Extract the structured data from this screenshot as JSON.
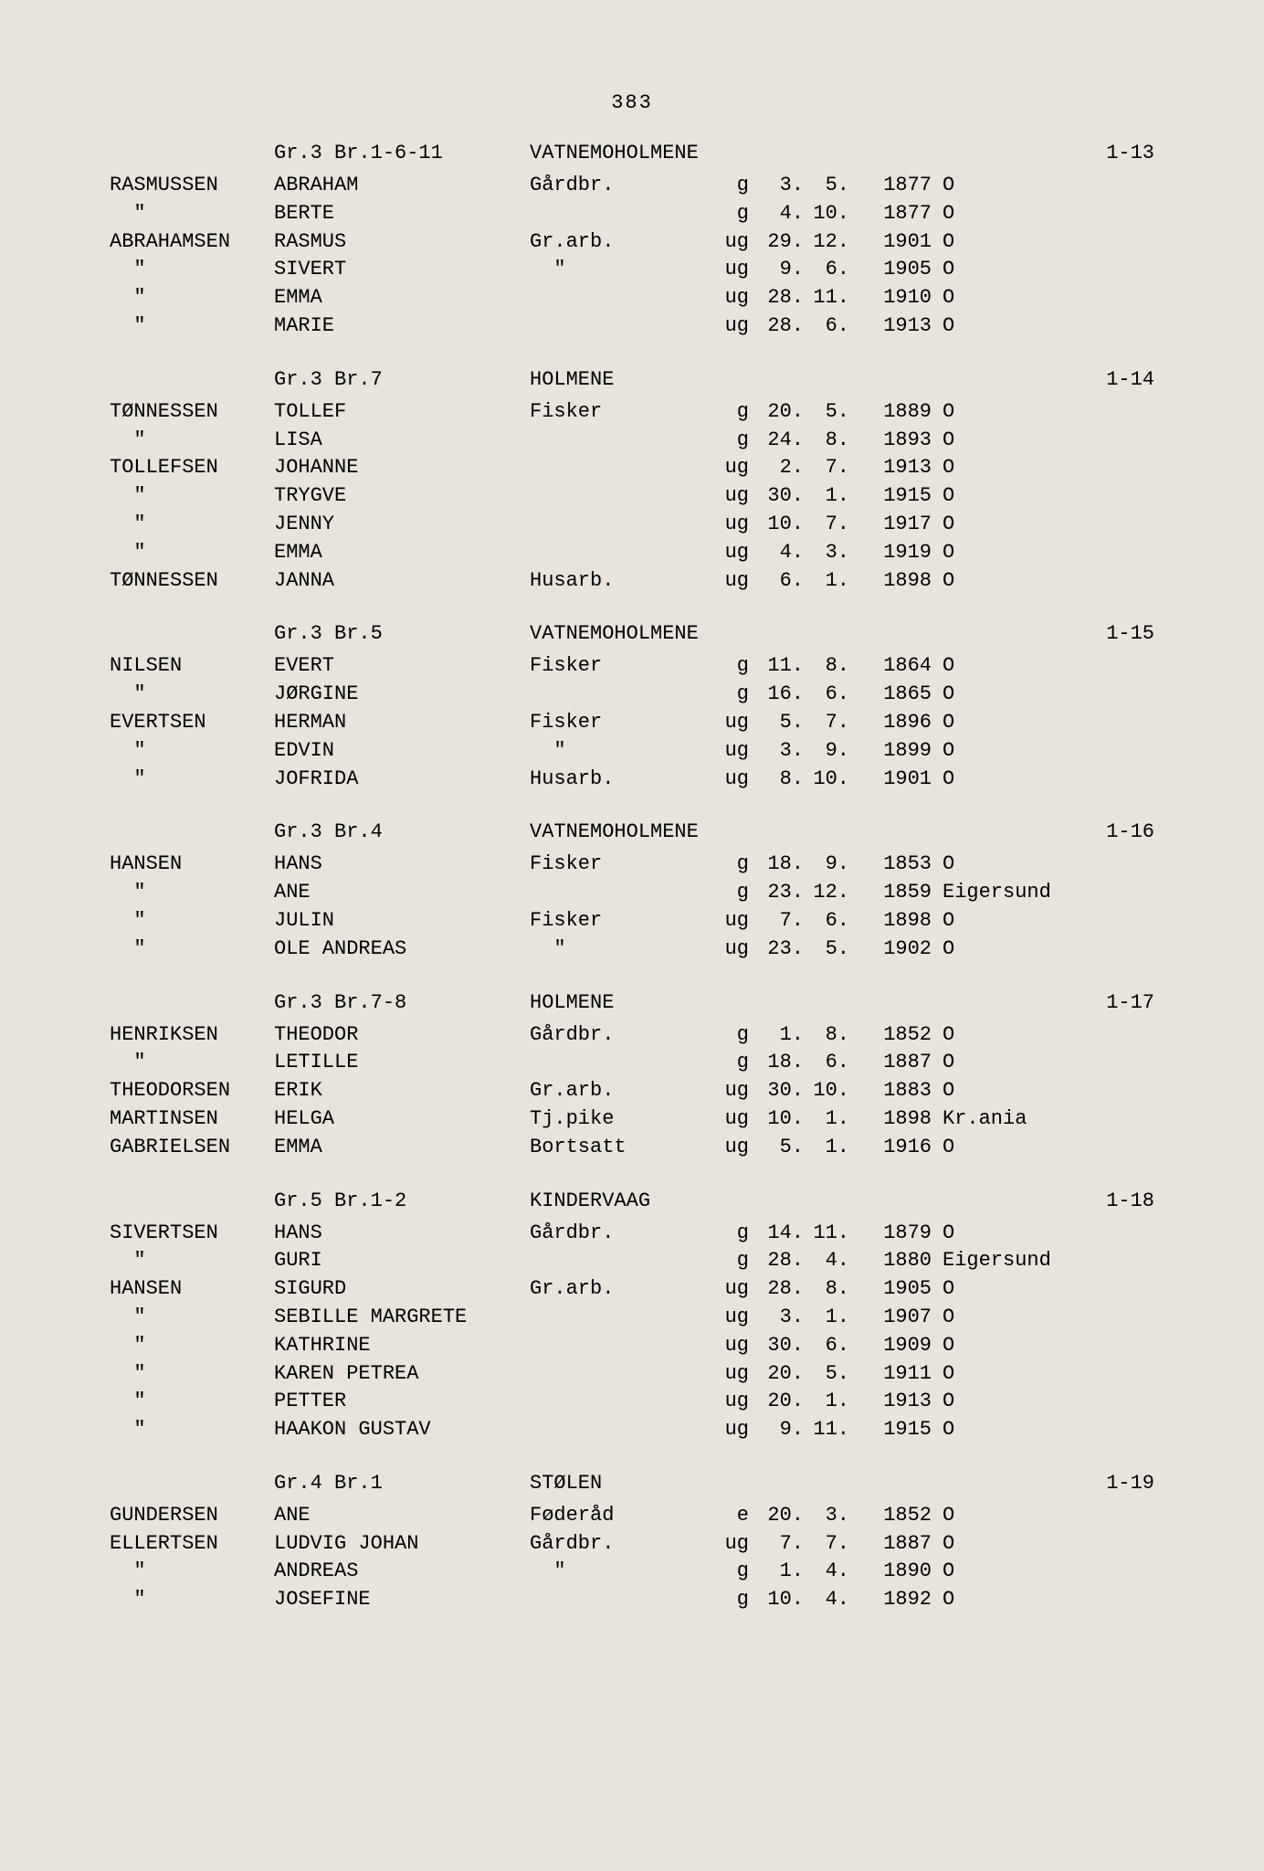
{
  "page_number": "383",
  "font_family": "Courier New",
  "background_color": "#e8e4dc",
  "text_color": "#2a2a2a",
  "sections": [
    {
      "gr": "Gr.3 Br.1-6-11",
      "location": "VATNEMOHOLMENE",
      "ref": "1-13",
      "rows": [
        {
          "surname": "RASMUSSEN",
          "name": "ABRAHAM",
          "occupation": "Gårdbr.",
          "status": "g",
          "day": "3.",
          "month": "5.",
          "year": "1877",
          "place": "O"
        },
        {
          "surname": "\"",
          "name": "BERTE",
          "occupation": "",
          "status": "g",
          "day": "4.",
          "month": "10.",
          "year": "1877",
          "place": "O"
        },
        {
          "surname": "ABRAHAMSEN",
          "name": "RASMUS",
          "occupation": "Gr.arb.",
          "status": "ug",
          "day": "29.",
          "month": "12.",
          "year": "1901",
          "place": "O"
        },
        {
          "surname": "\"",
          "name": "SIVERT",
          "occupation": "\"",
          "status": "ug",
          "day": "9.",
          "month": "6.",
          "year": "1905",
          "place": "O"
        },
        {
          "surname": "\"",
          "name": "EMMA",
          "occupation": "",
          "status": "ug",
          "day": "28.",
          "month": "11.",
          "year": "1910",
          "place": "O"
        },
        {
          "surname": "\"",
          "name": "MARIE",
          "occupation": "",
          "status": "ug",
          "day": "28.",
          "month": "6.",
          "year": "1913",
          "place": "O"
        }
      ]
    },
    {
      "gr": "Gr.3 Br.7",
      "location": "HOLMENE",
      "ref": "1-14",
      "rows": [
        {
          "surname": "TØNNESSEN",
          "name": "TOLLEF",
          "occupation": "Fisker",
          "status": "g",
          "day": "20.",
          "month": "5.",
          "year": "1889",
          "place": "O"
        },
        {
          "surname": "\"",
          "name": "LISA",
          "occupation": "",
          "status": "g",
          "day": "24.",
          "month": "8.",
          "year": "1893",
          "place": "O"
        },
        {
          "surname": "TOLLEFSEN",
          "name": "JOHANNE",
          "occupation": "",
          "status": "ug",
          "day": "2.",
          "month": "7.",
          "year": "1913",
          "place": "O"
        },
        {
          "surname": "\"",
          "name": "TRYGVE",
          "occupation": "",
          "status": "ug",
          "day": "30.",
          "month": "1.",
          "year": "1915",
          "place": "O"
        },
        {
          "surname": "\"",
          "name": "JENNY",
          "occupation": "",
          "status": "ug",
          "day": "10.",
          "month": "7.",
          "year": "1917",
          "place": "O"
        },
        {
          "surname": "\"",
          "name": "EMMA",
          "occupation": "",
          "status": "ug",
          "day": "4.",
          "month": "3.",
          "year": "1919",
          "place": "O"
        },
        {
          "surname": "TØNNESSEN",
          "name": "JANNA",
          "occupation": "Husarb.",
          "status": "ug",
          "day": "6.",
          "month": "1.",
          "year": "1898",
          "place": "O"
        }
      ]
    },
    {
      "gr": "Gr.3 Br.5",
      "location": "VATNEMOHOLMENE",
      "ref": "1-15",
      "rows": [
        {
          "surname": "NILSEN",
          "name": "EVERT",
          "occupation": "Fisker",
          "status": "g",
          "day": "11.",
          "month": "8.",
          "year": "1864",
          "place": "O"
        },
        {
          "surname": "\"",
          "name": "JØRGINE",
          "occupation": "",
          "status": "g",
          "day": "16.",
          "month": "6.",
          "year": "1865",
          "place": "O"
        },
        {
          "surname": "EVERTSEN",
          "name": "HERMAN",
          "occupation": "Fisker",
          "status": "ug",
          "day": "5.",
          "month": "7.",
          "year": "1896",
          "place": "O"
        },
        {
          "surname": "\"",
          "name": "EDVIN",
          "occupation": "\"",
          "status": "ug",
          "day": "3.",
          "month": "9.",
          "year": "1899",
          "place": "O"
        },
        {
          "surname": "\"",
          "name": "JOFRIDA",
          "occupation": "Husarb.",
          "status": "ug",
          "day": "8.",
          "month": "10.",
          "year": "1901",
          "place": "O"
        }
      ]
    },
    {
      "gr": "Gr.3 Br.4",
      "location": "VATNEMOHOLMENE",
      "ref": "1-16",
      "rows": [
        {
          "surname": "HANSEN",
          "name": "HANS",
          "occupation": "Fisker",
          "status": "g",
          "day": "18.",
          "month": "9.",
          "year": "1853",
          "place": "O"
        },
        {
          "surname": "\"",
          "name": "ANE",
          "occupation": "",
          "status": "g",
          "day": "23.",
          "month": "12.",
          "year": "1859",
          "place": "Eigersund"
        },
        {
          "surname": "\"",
          "name": "JULIN",
          "occupation": "Fisker",
          "status": "ug",
          "day": "7.",
          "month": "6.",
          "year": "1898",
          "place": "O"
        },
        {
          "surname": "\"",
          "name": "OLE ANDREAS",
          "occupation": "\"",
          "status": "ug",
          "day": "23.",
          "month": "5.",
          "year": "1902",
          "place": "O"
        }
      ]
    },
    {
      "gr": "Gr.3 Br.7-8",
      "location": "HOLMENE",
      "ref": "1-17",
      "rows": [
        {
          "surname": "HENRIKSEN",
          "name": "THEODOR",
          "occupation": "Gårdbr.",
          "status": "g",
          "day": "1.",
          "month": "8.",
          "year": "1852",
          "place": "O"
        },
        {
          "surname": "\"",
          "name": "LETILLE",
          "occupation": "",
          "status": "g",
          "day": "18.",
          "month": "6.",
          "year": "1887",
          "place": "O"
        },
        {
          "surname": "THEODORSEN",
          "name": "ERIK",
          "occupation": "Gr.arb.",
          "status": "ug",
          "day": "30.",
          "month": "10.",
          "year": "1883",
          "place": "O"
        },
        {
          "surname": "MARTINSEN",
          "name": "HELGA",
          "occupation": "Tj.pike",
          "status": "ug",
          "day": "10.",
          "month": "1.",
          "year": "1898",
          "place": "Kr.ania"
        },
        {
          "surname": "GABRIELSEN",
          "name": "EMMA",
          "occupation": "Bortsatt",
          "status": "ug",
          "day": "5.",
          "month": "1.",
          "year": "1916",
          "place": "O"
        }
      ]
    },
    {
      "gr": "Gr.5 Br.1-2",
      "location": "KINDERVAAG",
      "ref": "1-18",
      "rows": [
        {
          "surname": "SIVERTSEN",
          "name": "HANS",
          "occupation": "Gårdbr.",
          "status": "g",
          "day": "14.",
          "month": "11.",
          "year": "1879",
          "place": "O"
        },
        {
          "surname": "\"",
          "name": "GURI",
          "occupation": "",
          "status": "g",
          "day": "28.",
          "month": "4.",
          "year": "1880",
          "place": "Eigersund"
        },
        {
          "surname": "HANSEN",
          "name": "SIGURD",
          "occupation": "Gr.arb.",
          "status": "ug",
          "day": "28.",
          "month": "8.",
          "year": "1905",
          "place": "O"
        },
        {
          "surname": "\"",
          "name": "SEBILLE MARGRETE",
          "occupation": "",
          "status": "ug",
          "day": "3.",
          "month": "1.",
          "year": "1907",
          "place": "O"
        },
        {
          "surname": "\"",
          "name": "KATHRINE",
          "occupation": "",
          "status": "ug",
          "day": "30.",
          "month": "6.",
          "year": "1909",
          "place": "O"
        },
        {
          "surname": "\"",
          "name": "KAREN PETREA",
          "occupation": "",
          "status": "ug",
          "day": "20.",
          "month": "5.",
          "year": "1911",
          "place": "O"
        },
        {
          "surname": "\"",
          "name": "PETTER",
          "occupation": "",
          "status": "ug",
          "day": "20.",
          "month": "1.",
          "year": "1913",
          "place": "O"
        },
        {
          "surname": "\"",
          "name": "HAAKON GUSTAV",
          "occupation": "",
          "status": "ug",
          "day": "9.",
          "month": "11.",
          "year": "1915",
          "place": "O"
        }
      ]
    },
    {
      "gr": "Gr.4 Br.1",
      "location": "STØLEN",
      "ref": "1-19",
      "rows": [
        {
          "surname": "GUNDERSEN",
          "name": "ANE",
          "occupation": "Føderåd",
          "status": "e",
          "day": "20.",
          "month": "3.",
          "year": "1852",
          "place": "O"
        },
        {
          "surname": "ELLERTSEN",
          "name": "LUDVIG JOHAN",
          "occupation": "Gårdbr.",
          "status": "ug",
          "day": "7.",
          "month": "7.",
          "year": "1887",
          "place": "O"
        },
        {
          "surname": "\"",
          "name": "ANDREAS",
          "occupation": "\"",
          "status": "g",
          "day": "1.",
          "month": "4.",
          "year": "1890",
          "place": "O"
        },
        {
          "surname": "\"",
          "name": "JOSEFINE",
          "occupation": "",
          "status": "g",
          "day": "10.",
          "month": "4.",
          "year": "1892",
          "place": "O"
        }
      ]
    }
  ]
}
